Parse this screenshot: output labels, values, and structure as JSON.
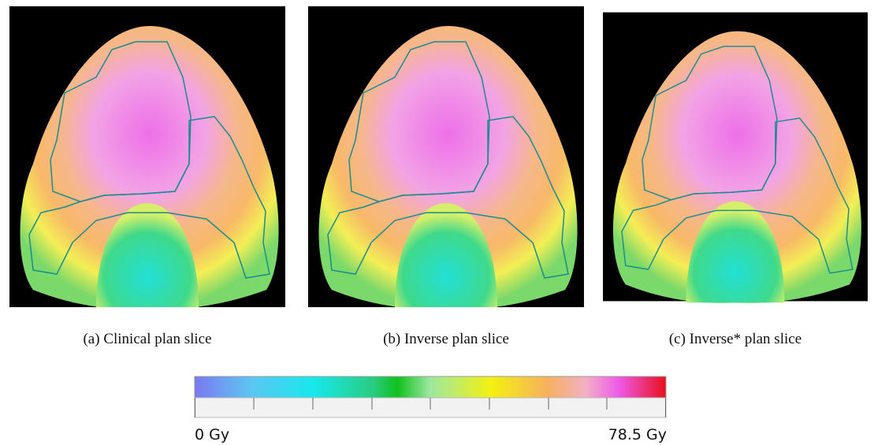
{
  "panels": [
    {
      "caption": "(a) Clinical plan slice"
    },
    {
      "caption": "(b) Inverse plan slice"
    },
    {
      "caption": "(c) Inverse* plan slice"
    }
  ],
  "colorbar": {
    "min_label": "0 Gy",
    "max_label": "78.5 Gy"
  }
}
